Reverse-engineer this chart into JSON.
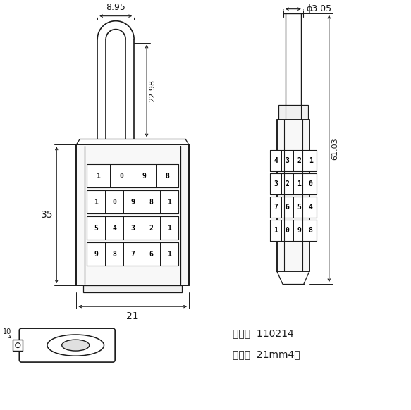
{
  "bg_color": "#ffffff",
  "line_color": "#1a1a1a",
  "fig_width": 5.83,
  "fig_height": 5.82,
  "dpi": 100,
  "product_code": "110214",
  "size_label": "21mm4轮",
  "dim_8_95": "8.95",
  "dim_3_05": "ϕ3.05",
  "dim_22_98": "22.98",
  "dim_61_03": "61.03",
  "dim_35": "35",
  "dim_21": "21",
  "left_row1": [
    "1",
    "0",
    "9",
    "8"
  ],
  "left_row2": [
    "1",
    "0",
    "9",
    "8",
    "1"
  ],
  "left_row3": [
    "5",
    "4",
    "3",
    "2",
    "1"
  ],
  "left_row4": [
    "9",
    "8",
    "7",
    "6",
    "1"
  ],
  "right_row1": [
    "4",
    "3",
    "2",
    "1"
  ],
  "right_row2": [
    "3",
    "2",
    "1",
    "0"
  ],
  "right_row3": [
    "7",
    "6",
    "5",
    "4"
  ],
  "right_row4": [
    "1",
    "0",
    "9",
    "8"
  ]
}
